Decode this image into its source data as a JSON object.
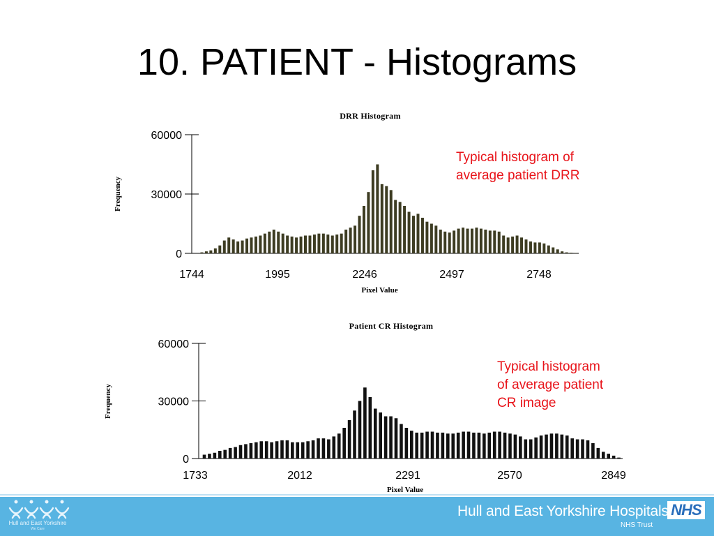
{
  "slide": {
    "title": "10. PATIENT -  Histograms"
  },
  "annotations": {
    "drr": [
      "Typical histogram of",
      "average patient DRR"
    ],
    "cr": [
      "Typical histogram",
      "of average patient",
      "CR image"
    ]
  },
  "footer": {
    "organization": "Hull and East Yorkshire Hospitals",
    "trust": "NHS Trust",
    "nhs_logo": "NHS",
    "left_logo_text": "Hull and East Yorkshire",
    "left_logo_subtext": "We Care",
    "colors": {
      "band": "#58b4e2",
      "text": "#ffffff",
      "logo": "#2a6ebb"
    }
  },
  "chart_data": [
    {
      "type": "bar",
      "title": "DRR Histogram",
      "xlabel": "Pixel Value",
      "ylabel": "Frequency",
      "ylim": [
        0,
        60000
      ],
      "yticks": [
        0,
        30000,
        60000
      ],
      "xticks": [
        "1744",
        "1995",
        "2246",
        "2497",
        "2748"
      ],
      "xrange": [
        1744,
        2853
      ],
      "bar_color": "#3d3c22",
      "values": [
        0,
        500,
        1000,
        1500,
        2500,
        4000,
        6500,
        8000,
        7000,
        6000,
        6500,
        7500,
        8000,
        8500,
        9000,
        10000,
        11000,
        12000,
        11000,
        10000,
        9000,
        8500,
        8000,
        8500,
        9000,
        9000,
        9500,
        10000,
        10000,
        9500,
        9000,
        9500,
        10000,
        12000,
        13000,
        14000,
        19000,
        24000,
        31000,
        42000,
        45000,
        35000,
        34000,
        32000,
        27000,
        26000,
        24000,
        21000,
        19000,
        20000,
        18000,
        16000,
        15000,
        14000,
        12000,
        11000,
        10500,
        11500,
        12500,
        13000,
        12500,
        12500,
        13000,
        12500,
        12000,
        11500,
        11500,
        11000,
        9000,
        8000,
        8500,
        9000,
        8000,
        7000,
        6000,
        5500,
        5500,
        5000,
        4000,
        3000,
        2000,
        1000,
        500,
        300,
        200
      ]
    },
    {
      "type": "bar",
      "title": "Patient CR Histogram",
      "xlabel": "Pixel Value",
      "ylabel": "Frequency",
      "ylim": [
        0,
        60000
      ],
      "yticks": [
        0,
        30000,
        60000
      ],
      "xticks": [
        "1733",
        "2012",
        "2291",
        "2570",
        "2849"
      ],
      "xrange": [
        1733,
        2849
      ],
      "bar_color": "#111111",
      "values": [
        2000,
        2500,
        3000,
        4000,
        4500,
        5500,
        6000,
        7000,
        7500,
        8000,
        8500,
        9000,
        9000,
        8500,
        9000,
        9500,
        9500,
        8500,
        8500,
        8500,
        9000,
        9500,
        10500,
        10500,
        10000,
        11500,
        13000,
        16000,
        20000,
        25000,
        30000,
        37000,
        32000,
        26000,
        24000,
        22000,
        22000,
        21000,
        18000,
        16000,
        14500,
        13500,
        13500,
        14000,
        14000,
        13500,
        13500,
        13000,
        13000,
        13500,
        14000,
        14000,
        13500,
        13500,
        13000,
        13500,
        14000,
        14000,
        13500,
        13000,
        12500,
        11500,
        10000,
        10000,
        11000,
        12000,
        12500,
        13000,
        13000,
        12500,
        12000,
        10500,
        10000,
        10000,
        9500,
        8000,
        5500,
        3500,
        2500,
        1500,
        500
      ]
    }
  ]
}
